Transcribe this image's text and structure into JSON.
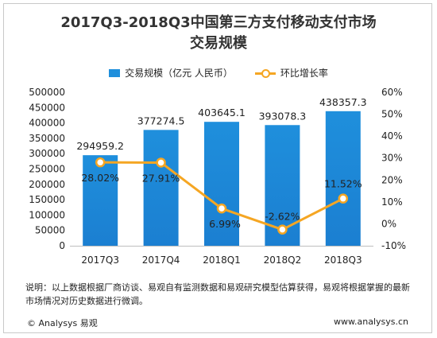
{
  "title_line1": "2017Q3-2018Q3中国第三方支付移动支付市场",
  "title_line2": "交易规模",
  "note": "说明：以上数据根据厂商访谈、易观自有监测数据和易观研究模型估算获得，易观将根据掌握的最新市场情况对历史数据进行微调。",
  "footer": {
    "brand": "© Analysys 易观",
    "url": "www.analysys.cn"
  },
  "colors": {
    "bar": "#1f8fdc",
    "line": "#f5a623"
  },
  "chart_data": {
    "type": "bar",
    "categories": [
      "2017Q3",
      "2017Q4",
      "2018Q1",
      "2018Q2",
      "2018Q3"
    ],
    "series": [
      {
        "name": "交易规模（亿元 人民币）",
        "type": "bar",
        "axis": "left",
        "values": [
          294959.2,
          377274.5,
          403645.1,
          393078.3,
          438357.3
        ],
        "labels": [
          "294959.2",
          "377274.5",
          "403645.1",
          "393078.3",
          "438357.3"
        ]
      },
      {
        "name": "环比增长率",
        "type": "line",
        "axis": "right",
        "values": [
          28.02,
          27.91,
          6.99,
          -2.62,
          11.52
        ],
        "labels": [
          "28.02%",
          "27.91%",
          "6.99%",
          "-2.62%",
          "11.52%"
        ]
      }
    ],
    "left_axis": {
      "ylim": [
        0,
        500000
      ],
      "ticks": [
        "0",
        "50000",
        "100000",
        "150000",
        "200000",
        "250000",
        "300000",
        "350000",
        "400000",
        "450000",
        "500000"
      ]
    },
    "right_axis": {
      "ylim": [
        -10,
        60
      ],
      "ticks": [
        "-10%",
        "0%",
        "10%",
        "20%",
        "30%",
        "40%",
        "50%",
        "60%"
      ]
    },
    "legend": "top-center",
    "grid": false
  }
}
